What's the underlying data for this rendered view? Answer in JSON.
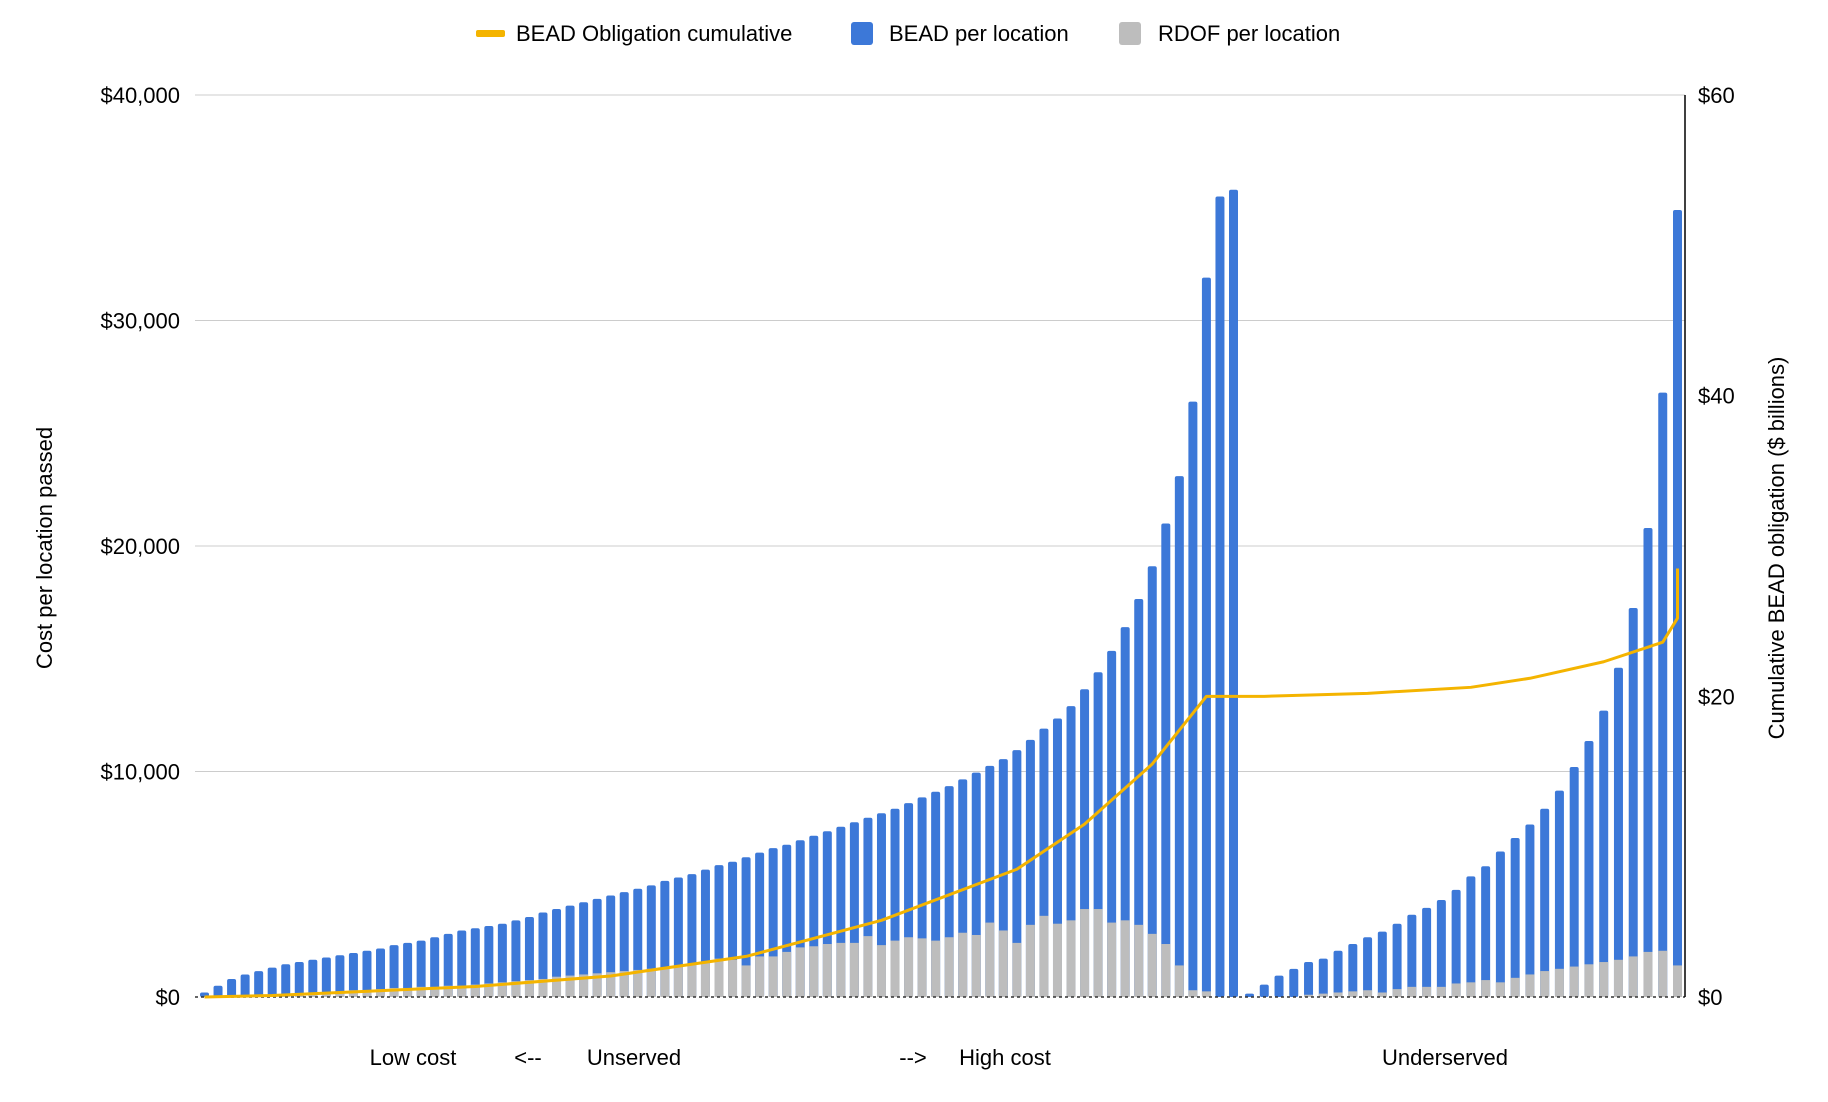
{
  "chart_data": {
    "type": "bar",
    "legend": {
      "placement": "top-center",
      "entries": [
        {
          "name": "BEAD Obligation cumulative",
          "color": "#F4B400",
          "kind": "line"
        },
        {
          "name": "BEAD per location",
          "color": "#3C78D8",
          "kind": "bar"
        },
        {
          "name": "RDOF per location",
          "color": "#BDBDBD",
          "kind": "bar"
        }
      ]
    },
    "ylabel": "Cost per location passed",
    "ylabel_right": "Cumulative BEAD obligation ($ billions)",
    "ylim": [
      0,
      40000
    ],
    "ylim_right": [
      0,
      60
    ],
    "left_ticks": [
      "$0",
      "$10,000",
      "$20,000",
      "$30,000",
      "$40,000"
    ],
    "left_tick_values": [
      0,
      10000,
      20000,
      30000,
      40000
    ],
    "right_ticks": [
      "$0",
      "$20",
      "$40",
      "$60"
    ],
    "right_tick_values": [
      0,
      20,
      40,
      60
    ],
    "x_annotations": [
      "Low cost",
      "<--",
      "Unserved",
      "-->",
      "High cost",
      "Underserved"
    ],
    "grid": true,
    "groups": [
      {
        "name": "Unserved",
        "bead": [
          200,
          500,
          800,
          1000,
          1150,
          1300,
          1450,
          1550,
          1650,
          1750,
          1850,
          1950,
          2050,
          2150,
          2300,
          2400,
          2500,
          2650,
          2800,
          2950,
          3050,
          3150,
          3250,
          3400,
          3550,
          3750,
          3900,
          4050,
          4200,
          4350,
          4500,
          4650,
          4800,
          4950,
          5150,
          5300,
          5450,
          5650,
          5850,
          6000,
          6200,
          6400,
          6600,
          6750,
          6950,
          7150,
          7350,
          7550,
          7750,
          7950,
          8150,
          8350,
          8600,
          8850,
          9100,
          9350,
          9650,
          9950,
          10250,
          10550,
          10950,
          11400,
          11900,
          12350,
          12900,
          13650,
          14400,
          15350,
          16400,
          17650,
          19100,
          21000,
          23100,
          26400,
          31900,
          35500,
          35800
        ],
        "rdof": [
          0,
          0,
          0,
          0,
          0,
          100,
          100,
          100,
          150,
          200,
          200,
          300,
          300,
          350,
          400,
          400,
          450,
          450,
          500,
          500,
          550,
          600,
          650,
          700,
          750,
          800,
          900,
          950,
          1000,
          1050,
          1100,
          1150,
          1200,
          1250,
          1300,
          1350,
          1450,
          1550,
          1700,
          1650,
          1400,
          1800,
          1800,
          2000,
          2200,
          2250,
          2350,
          2400,
          2400,
          2700,
          2300,
          2500,
          2650,
          2600,
          2500,
          2650,
          2850,
          2750,
          3300,
          2950,
          2400,
          3200,
          3600,
          3250,
          3400,
          3900,
          3900,
          3300,
          3400,
          3200,
          2800,
          2350,
          1400,
          300,
          250,
          0,
          0
        ]
      },
      {
        "name": "Underserved",
        "bead": [
          150,
          550,
          950,
          1250,
          1550,
          1700,
          2050,
          2350,
          2650,
          2900,
          3250,
          3650,
          3950,
          4300,
          4750,
          5350,
          5800,
          6450,
          7050,
          7650,
          8350,
          9150,
          10200,
          11350,
          12700,
          14600,
          17250,
          20800,
          26800,
          34900
        ],
        "rdof": [
          0,
          0,
          0,
          0,
          100,
          150,
          200,
          250,
          300,
          200,
          350,
          450,
          450,
          450,
          600,
          650,
          750,
          650,
          850,
          1000,
          1150,
          1250,
          1350,
          1450,
          1550,
          1650,
          1800,
          2000,
          2050,
          1400
        ]
      }
    ],
    "cumulative_line": {
      "name": "BEAD Obligation cumulative",
      "points": [
        {
          "bar": 0,
          "value": 0
        },
        {
          "bar": 5,
          "value": 0.1
        },
        {
          "bar": 10,
          "value": 0.3
        },
        {
          "bar": 20,
          "value": 0.7
        },
        {
          "bar": 30,
          "value": 1.4
        },
        {
          "bar": 40,
          "value": 2.7
        },
        {
          "bar": 50,
          "value": 5.1
        },
        {
          "bar": 60,
          "value": 8.5
        },
        {
          "bar": 65,
          "value": 11.5
        },
        {
          "bar": 70,
          "value": 15.5
        },
        {
          "bar": 74,
          "value": 20.0
        },
        {
          "bar": 78,
          "value": 20.0
        },
        {
          "bar": 85,
          "value": 20.2
        },
        {
          "bar": 92,
          "value": 20.6
        },
        {
          "bar": 96,
          "value": 21.2
        },
        {
          "bar": 101,
          "value": 22.3
        },
        {
          "bar": 105,
          "value": 23.6
        },
        {
          "bar": 108,
          "value": 25.2
        },
        {
          "bar": 111,
          "value": 27.3
        },
        {
          "bar": 113,
          "value": 28.5
        },
        {
          "bar": 116,
          "value": 28.5
        }
      ]
    }
  }
}
